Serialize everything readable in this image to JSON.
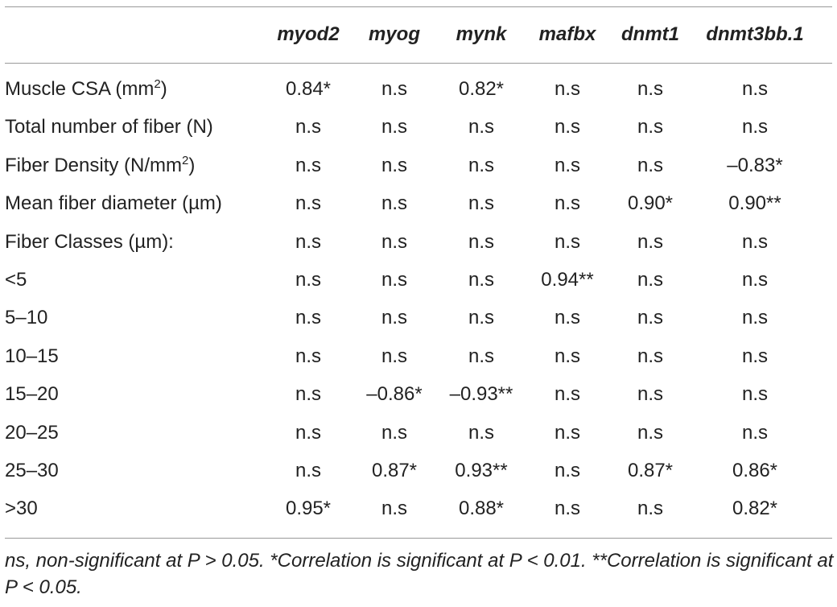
{
  "table": {
    "columns": [
      "myod2",
      "myog",
      "mynk",
      "mafbx",
      "dnmt1",
      "dnmt3bb.1"
    ],
    "rows": [
      {
        "label": "Muscle CSA (mm",
        "label_sup": "2",
        "label_end": ")",
        "cells": [
          "0.84*",
          "n.s",
          "0.82*",
          "n.s",
          "n.s",
          "n.s"
        ]
      },
      {
        "label": "Total number of fiber (N)",
        "cells": [
          "n.s",
          "n.s",
          "n.s",
          "n.s",
          "n.s",
          "n.s"
        ]
      },
      {
        "label": "Fiber Density (N/mm",
        "label_sup": "2",
        "label_end": ")",
        "cells": [
          "n.s",
          "n.s",
          "n.s",
          "n.s",
          "n.s",
          "–0.83*"
        ]
      },
      {
        "label": "Mean fiber diameter (µm)",
        "cells": [
          "n.s",
          "n.s",
          "n.s",
          "n.s",
          "0.90*",
          "0.90**"
        ]
      },
      {
        "label": "Fiber Classes (µm):",
        "cells": [
          "n.s",
          "n.s",
          "n.s",
          "n.s",
          "n.s",
          "n.s"
        ]
      },
      {
        "label": "<5",
        "cells": [
          "n.s",
          "n.s",
          "n.s",
          "0.94**",
          "n.s",
          "n.s"
        ]
      },
      {
        "label": "5–10",
        "cells": [
          "n.s",
          "n.s",
          "n.s",
          "n.s",
          "n.s",
          "n.s"
        ]
      },
      {
        "label": "10–15",
        "cells": [
          "n.s",
          "n.s",
          "n.s",
          "n.s",
          "n.s",
          "n.s"
        ]
      },
      {
        "label": "15–20",
        "cells": [
          "n.s",
          "–0.86*",
          "–0.93**",
          "n.s",
          "n.s",
          "n.s"
        ]
      },
      {
        "label": "20–25",
        "cells": [
          "n.s",
          "n.s",
          "n.s",
          "n.s",
          "n.s",
          "n.s"
        ]
      },
      {
        "label": "25–30",
        "cells": [
          "n.s",
          "0.87*",
          "0.93**",
          "n.s",
          "0.87*",
          "0.86*"
        ]
      },
      {
        "label": ">30",
        "cells": [
          "0.95*",
          "n.s",
          "0.88*",
          "n.s",
          "n.s",
          "0.82*"
        ]
      }
    ],
    "footnote": "ns, non-significant at P > 0.05. *Correlation is significant at P < 0.01. **Correlation is significant at P < 0.05."
  }
}
